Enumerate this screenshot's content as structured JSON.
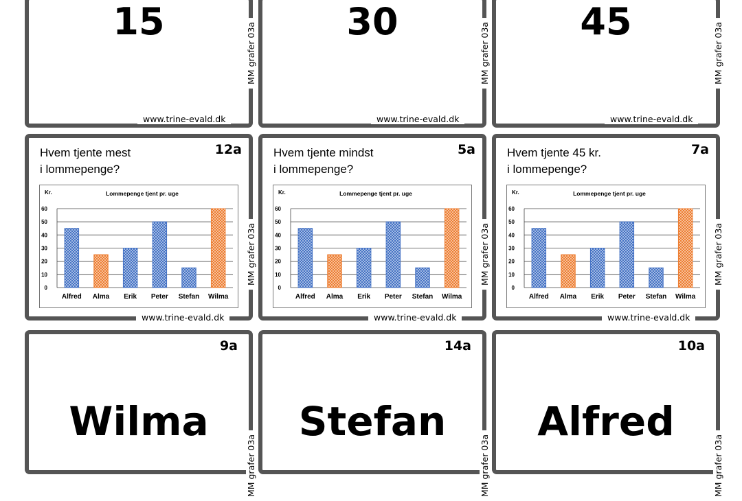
{
  "colors": {
    "frame": "#555555",
    "blue": "#4472c4",
    "orange": "#ed7d31"
  },
  "footer_url": "www.trine-evald.dk",
  "side_label": "MM grafer 03a",
  "top_cards": [
    {
      "number": "15"
    },
    {
      "number": "30"
    },
    {
      "number": "45"
    }
  ],
  "question_cards": [
    {
      "question_line1": "Hvem tjente mest",
      "question_line2": "i lommepenge?",
      "card_id": "12a"
    },
    {
      "question_line1": "Hvem tjente mindst",
      "question_line2": "i lommepenge?",
      "card_id": "5a"
    },
    {
      "question_line1": "Hvem tjente 45 kr.",
      "question_line2": "i lommepenge?",
      "card_id": "7a"
    }
  ],
  "bottom_cards": [
    {
      "name": "Wilma",
      "card_id": "9a"
    },
    {
      "name": "Stefan",
      "card_id": "14a"
    },
    {
      "name": "Alfred",
      "card_id": "10a"
    }
  ],
  "chart_data": {
    "type": "bar",
    "title": "Lommepenge tjent pr. uge",
    "ylabel": "Kr.",
    "xlabel": "",
    "categories": [
      "Alfred",
      "Alma",
      "Erik",
      "Peter",
      "Stefan",
      "Wilma"
    ],
    "values": [
      45,
      25,
      30,
      50,
      15,
      60
    ],
    "bar_colors": [
      "blue",
      "orange",
      "blue",
      "blue",
      "blue",
      "orange"
    ],
    "ylim": [
      0,
      60
    ],
    "yticks": [
      0,
      10,
      20,
      30,
      40,
      50,
      60
    ],
    "grid": true,
    "legend": "none"
  }
}
